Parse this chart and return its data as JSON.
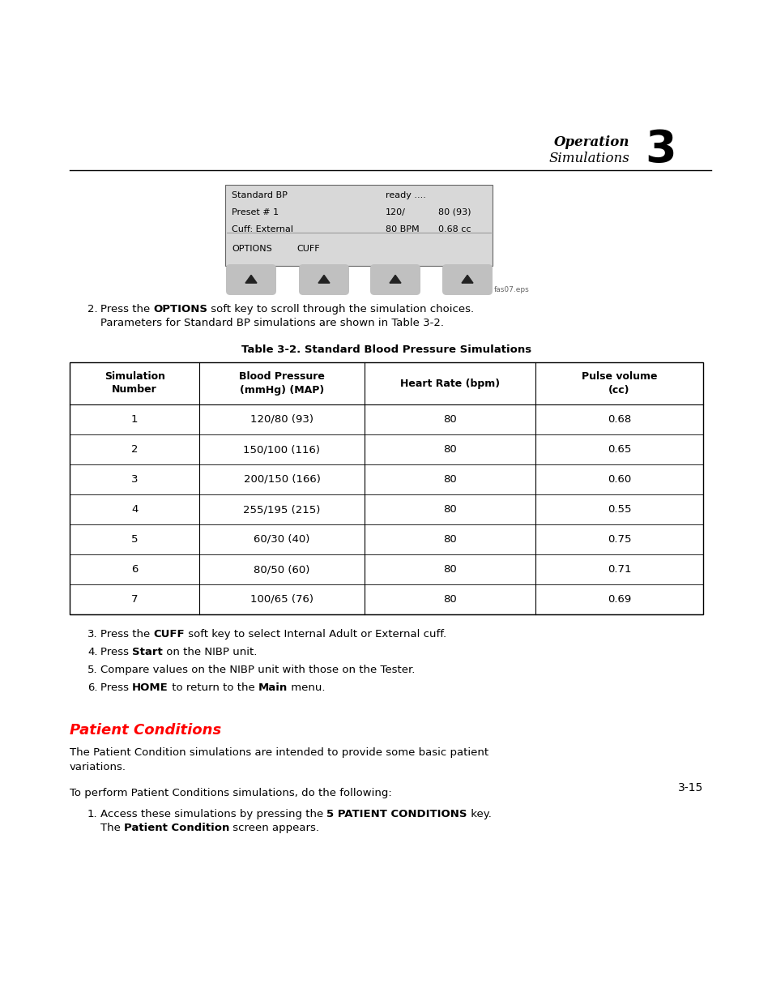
{
  "page_bg": "#ffffff",
  "header_operation": "Operation",
  "header_simulations": "Simulations",
  "header_number": "3",
  "table_title": "Table 3-2. Standard Blood Pressure Simulations",
  "table_headers": [
    "Simulation\nNumber",
    "Blood Pressure\n(mmHg) (MAP)",
    "Heart Rate (bpm)",
    "Pulse volume\n(cc)"
  ],
  "table_data": [
    [
      "1",
      "120/80 (93)",
      "80",
      "0.68"
    ],
    [
      "2",
      "150/100 (116)",
      "80",
      "0.65"
    ],
    [
      "3",
      "200/150 (166)",
      "80",
      "0.60"
    ],
    [
      "4",
      "255/195 (215)",
      "80",
      "0.55"
    ],
    [
      "5",
      "60/30 (40)",
      "80",
      "0.75"
    ],
    [
      "6",
      "80/50 (60)",
      "80",
      "0.71"
    ],
    [
      "7",
      "100/65 (76)",
      "80",
      "0.69"
    ]
  ],
  "section_title": "Patient Conditions",
  "section_title_color": "#ff0000",
  "page_number": "3-15"
}
